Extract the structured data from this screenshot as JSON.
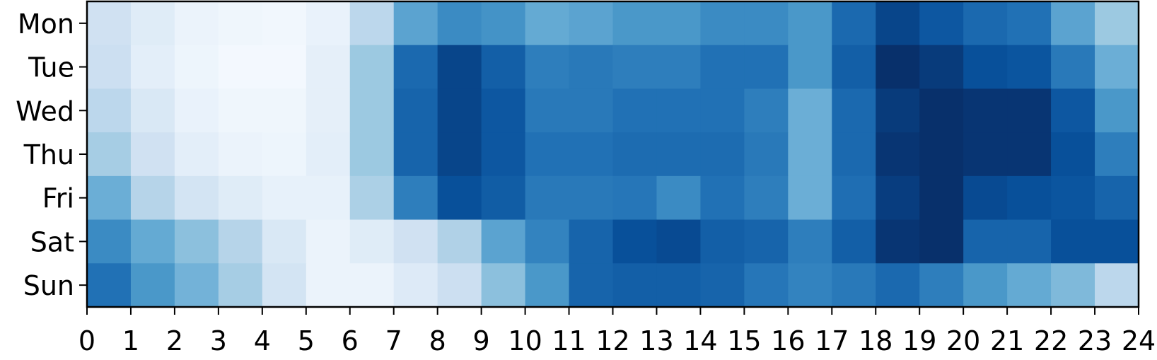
{
  "chart_data": {
    "type": "heatmap",
    "title": "",
    "xlabel": "",
    "ylabel": "",
    "colormap": "Blues",
    "grid": false,
    "legend": "none",
    "x_ticks": [
      "0",
      "1",
      "2",
      "3",
      "4",
      "5",
      "6",
      "7",
      "8",
      "9",
      "10",
      "11",
      "12",
      "13",
      "14",
      "15",
      "16",
      "17",
      "18",
      "19",
      "20",
      "21",
      "22",
      "23",
      "24"
    ],
    "rows": [
      "Mon",
      "Tue",
      "Wed",
      "Thu",
      "Fri",
      "Sat",
      "Sun"
    ],
    "value_range": [
      0,
      1
    ],
    "values": [
      [
        0.2,
        0.12,
        0.06,
        0.04,
        0.03,
        0.07,
        0.28,
        0.55,
        0.65,
        0.62,
        0.52,
        0.55,
        0.6,
        0.6,
        0.65,
        0.65,
        0.6,
        0.78,
        0.92,
        0.85,
        0.78,
        0.75,
        0.55,
        0.38
      ],
      [
        0.22,
        0.1,
        0.05,
        0.02,
        0.02,
        0.09,
        0.38,
        0.78,
        0.92,
        0.82,
        0.7,
        0.72,
        0.7,
        0.7,
        0.75,
        0.75,
        0.6,
        0.82,
        1.0,
        0.96,
        0.88,
        0.86,
        0.72,
        0.5
      ],
      [
        0.28,
        0.15,
        0.07,
        0.04,
        0.04,
        0.09,
        0.38,
        0.8,
        0.92,
        0.85,
        0.72,
        0.72,
        0.75,
        0.75,
        0.75,
        0.7,
        0.5,
        0.78,
        0.96,
        1.0,
        0.98,
        0.98,
        0.85,
        0.6
      ],
      [
        0.35,
        0.2,
        0.1,
        0.06,
        0.05,
        0.1,
        0.38,
        0.8,
        0.92,
        0.85,
        0.75,
        0.75,
        0.77,
        0.77,
        0.77,
        0.72,
        0.5,
        0.78,
        0.98,
        1.0,
        0.98,
        0.98,
        0.88,
        0.7
      ],
      [
        0.5,
        0.3,
        0.18,
        0.12,
        0.08,
        0.08,
        0.33,
        0.7,
        0.88,
        0.83,
        0.72,
        0.72,
        0.73,
        0.65,
        0.75,
        0.7,
        0.5,
        0.76,
        0.95,
        1.0,
        0.9,
        0.88,
        0.86,
        0.8
      ],
      [
        0.65,
        0.52,
        0.42,
        0.3,
        0.15,
        0.06,
        0.12,
        0.2,
        0.32,
        0.55,
        0.68,
        0.8,
        0.88,
        0.9,
        0.82,
        0.8,
        0.7,
        0.82,
        0.98,
        1.0,
        0.8,
        0.8,
        0.88,
        0.88
      ],
      [
        0.75,
        0.6,
        0.48,
        0.35,
        0.18,
        0.06,
        0.06,
        0.13,
        0.22,
        0.42,
        0.6,
        0.8,
        0.82,
        0.82,
        0.8,
        0.73,
        0.68,
        0.72,
        0.78,
        0.7,
        0.6,
        0.52,
        0.45,
        0.28
      ]
    ]
  }
}
